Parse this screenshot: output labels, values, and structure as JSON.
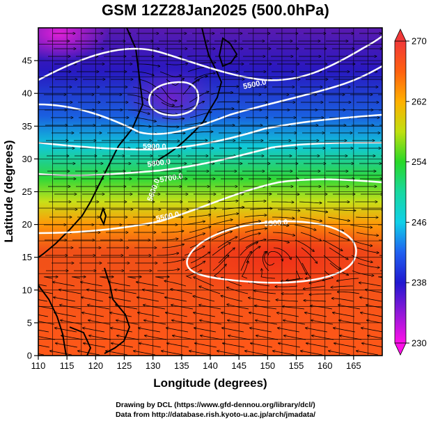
{
  "title": "GSM 12Z28Jan2025 (500.0hPa)",
  "x_axis": {
    "label": "Longitude (degrees)",
    "ticks": [
      "110",
      "115",
      "120",
      "125",
      "130",
      "135",
      "140",
      "145",
      "150",
      "155",
      "160",
      "165"
    ]
  },
  "y_axis": {
    "label": "Latitude  (degrees)",
    "ticks": [
      "0",
      "5",
      "10",
      "15",
      "20",
      "25",
      "30",
      "35",
      "40",
      "45"
    ]
  },
  "colorbar": {
    "ticks": [
      "230",
      "238",
      "246",
      "254",
      "262",
      "270"
    ],
    "min": 230,
    "max": 270
  },
  "contour_labels": [
    "5500.0",
    "5500.0",
    "5900.0",
    "5800.0",
    "5700.0",
    "5600.0",
    "5500.0"
  ],
  "credits": {
    "line1": "Drawing by DCL (https://www.gfd-dennou.org/library/dcl/)",
    "line2": "Data from http://database.rish.kyoto-u.ac.jp/arch/jmadata/"
  },
  "chart_data": {
    "type": "heatmap",
    "title": "GSM 12Z28Jan2025 (500.0hPa)",
    "xlabel": "Longitude (degrees)",
    "ylabel": "Latitude  (degrees)",
    "xlim": [
      110,
      170
    ],
    "ylim": [
      0,
      50
    ],
    "color_range": [
      230,
      270
    ],
    "color_ticks": [
      230,
      238,
      246,
      254,
      262,
      270
    ],
    "contour_levels": [
      5500,
      5600,
      5700,
      5800,
      5900
    ],
    "overlay": "streamlines",
    "grid": true,
    "coastlines": true,
    "colors": {
      "low": "#e81ae0",
      "mid_low": "#1818c8",
      "mid": "#00d0d0",
      "mid_high": "#28d828",
      "high": "#ff8000",
      "top": "#f02020",
      "contour": "#ffffff"
    }
  }
}
